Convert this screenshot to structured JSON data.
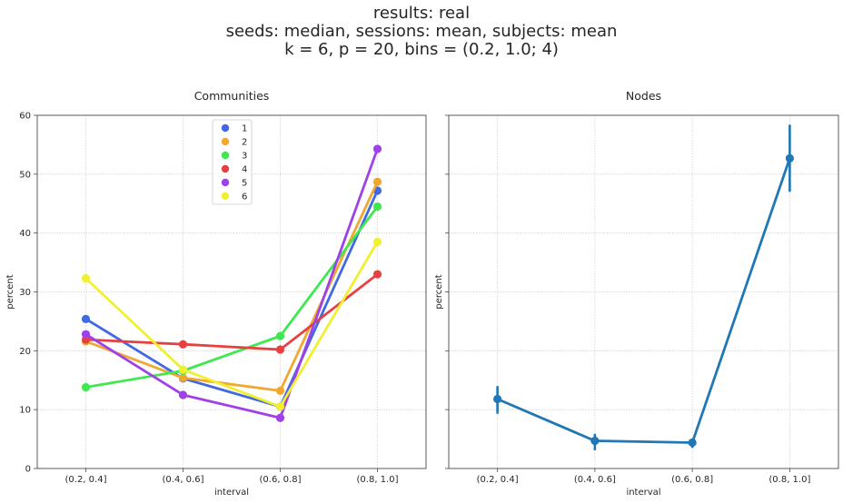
{
  "figure": {
    "title_lines": [
      "results: real",
      "seeds: median, sessions: mean, subjects: mean",
      "k = 6,  p = 20,  bins = (0.2, 1.0; 4)"
    ]
  },
  "chart_data": [
    {
      "type": "line",
      "title": "Communities",
      "xlabel": "interval",
      "ylabel": "percent",
      "categories": [
        "(0.2, 0.4]",
        "(0.4, 0.6]",
        "(0.6, 0.8]",
        "(0.8, 1.0]"
      ],
      "ylim": [
        0,
        60
      ],
      "yticks": [
        0,
        10,
        20,
        30,
        40,
        50,
        60
      ],
      "grid": true,
      "legend": "top-center",
      "series": [
        {
          "name": "1",
          "color": "#4169e1",
          "values": [
            25.4,
            15.3,
            10.5,
            47.2
          ]
        },
        {
          "name": "2",
          "color": "#f0a830",
          "values": [
            21.6,
            15.4,
            13.2,
            48.7
          ]
        },
        {
          "name": "3",
          "color": "#40e850",
          "values": [
            13.8,
            16.6,
            22.5,
            44.5
          ]
        },
        {
          "name": "4",
          "color": "#e84040",
          "values": [
            21.9,
            21.1,
            20.2,
            33.0
          ]
        },
        {
          "name": "5",
          "color": "#a040e8",
          "values": [
            22.8,
            12.5,
            8.6,
            54.3
          ]
        },
        {
          "name": "6",
          "color": "#f0f030",
          "values": [
            32.3,
            16.8,
            10.5,
            38.5
          ]
        }
      ]
    },
    {
      "type": "line",
      "title": "Nodes",
      "xlabel": "interval",
      "ylabel": "percent",
      "categories": [
        "(0.2, 0.4]",
        "(0.4, 0.6]",
        "(0.6, 0.8]",
        "(0.8, 1.0]"
      ],
      "ylim": [
        0,
        60
      ],
      "grid": true,
      "series": [
        {
          "color": "#1f77b4",
          "values": [
            11.8,
            4.7,
            4.4,
            52.7
          ],
          "err_low": [
            9.3,
            3.1,
            3.5,
            47.0
          ],
          "err_high": [
            14.0,
            5.9,
            5.0,
            58.4
          ]
        }
      ]
    }
  ]
}
